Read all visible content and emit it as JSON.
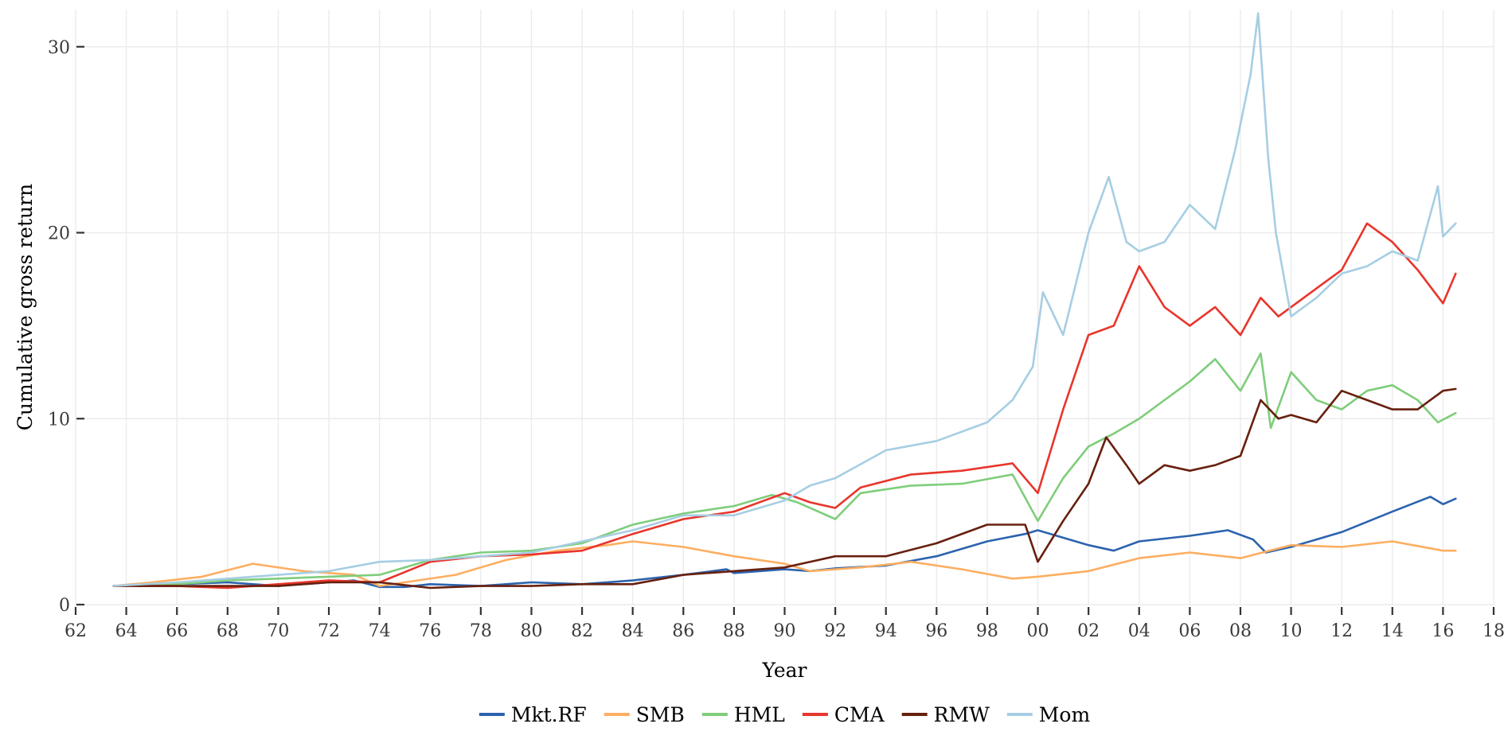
{
  "chart_data": {
    "type": "line",
    "xlabel": "Year",
    "ylabel": "Cumulative gross return",
    "xlim": [
      1962,
      2018
    ],
    "ylim": [
      0,
      32
    ],
    "x_ticks": [
      {
        "value": 1962,
        "label": "62"
      },
      {
        "value": 1964,
        "label": "64"
      },
      {
        "value": 1966,
        "label": "66"
      },
      {
        "value": 1968,
        "label": "68"
      },
      {
        "value": 1970,
        "label": "70"
      },
      {
        "value": 1972,
        "label": "72"
      },
      {
        "value": 1974,
        "label": "74"
      },
      {
        "value": 1976,
        "label": "76"
      },
      {
        "value": 1978,
        "label": "78"
      },
      {
        "value": 1980,
        "label": "80"
      },
      {
        "value": 1982,
        "label": "82"
      },
      {
        "value": 1984,
        "label": "84"
      },
      {
        "value": 1986,
        "label": "86"
      },
      {
        "value": 1988,
        "label": "88"
      },
      {
        "value": 1990,
        "label": "90"
      },
      {
        "value": 1992,
        "label": "92"
      },
      {
        "value": 1994,
        "label": "94"
      },
      {
        "value": 1996,
        "label": "96"
      },
      {
        "value": 1998,
        "label": "98"
      },
      {
        "value": 2000,
        "label": "00"
      },
      {
        "value": 2002,
        "label": "02"
      },
      {
        "value": 2004,
        "label": "04"
      },
      {
        "value": 2006,
        "label": "06"
      },
      {
        "value": 2008,
        "label": "08"
      },
      {
        "value": 2010,
        "label": "10"
      },
      {
        "value": 2012,
        "label": "12"
      },
      {
        "value": 2014,
        "label": "14"
      },
      {
        "value": 2016,
        "label": "16"
      },
      {
        "value": 2018,
        "label": "18"
      }
    ],
    "y_ticks": [
      {
        "value": 0,
        "label": "0"
      },
      {
        "value": 10,
        "label": "10"
      },
      {
        "value": 20,
        "label": "20"
      },
      {
        "value": 30,
        "label": "30"
      }
    ],
    "grid": true,
    "legend_position": "bottom",
    "series": [
      {
        "name": "Mkt.RF",
        "color": "#2c63ae",
        "x": [
          1963.5,
          1966,
          1968,
          1970,
          1972,
          1973,
          1974,
          1975,
          1976,
          1978,
          1980,
          1982,
          1984,
          1986,
          1987.7,
          1988,
          1990,
          1991,
          1992,
          1994,
          1996,
          1998,
          1999.5,
          2000,
          2001,
          2002,
          2003,
          2004,
          2006,
          2007.5,
          2008.5,
          2009,
          2010,
          2012,
          2014,
          2015.5,
          2016,
          2016.5
        ],
        "y": [
          1.0,
          1.1,
          1.2,
          1.0,
          1.2,
          1.3,
          0.95,
          0.95,
          1.1,
          1.0,
          1.2,
          1.1,
          1.3,
          1.6,
          1.9,
          1.7,
          1.9,
          1.8,
          1.95,
          2.1,
          2.6,
          3.4,
          3.8,
          4.0,
          3.6,
          3.2,
          2.9,
          3.4,
          3.7,
          4.0,
          3.5,
          2.8,
          3.1,
          3.9,
          5.0,
          5.8,
          5.4,
          5.7
        ]
      },
      {
        "name": "SMB",
        "color": "#fdae61",
        "x": [
          1963.5,
          1965,
          1967,
          1969,
          1971,
          1973,
          1974,
          1975,
          1977,
          1979,
          1981,
          1983,
          1984,
          1986,
          1988,
          1990,
          1991,
          1993,
          1995,
          1997,
          1999,
          2000,
          2002,
          2004,
          2006,
          2008,
          2010,
          2012,
          2014,
          2016,
          2016.5
        ],
        "y": [
          1.0,
          1.2,
          1.5,
          2.2,
          1.8,
          1.6,
          1.0,
          1.2,
          1.6,
          2.4,
          2.9,
          3.2,
          3.4,
          3.1,
          2.6,
          2.2,
          1.8,
          2.0,
          2.3,
          1.9,
          1.4,
          1.5,
          1.8,
          2.5,
          2.8,
          2.5,
          3.2,
          3.1,
          3.4,
          2.9,
          2.9
        ]
      },
      {
        "name": "HML",
        "color": "#7fcd7b",
        "x": [
          1963.5,
          1966,
          1968,
          1970,
          1972,
          1974,
          1976,
          1978,
          1980,
          1982,
          1984,
          1986,
          1988,
          1989.5,
          1990.5,
          1992,
          1993,
          1995,
          1997,
          1999,
          2000,
          2001,
          2002,
          2003,
          2004,
          2006,
          2007,
          2008,
          2008.8,
          2009.2,
          2010,
          2011,
          2012,
          2013,
          2014,
          2015,
          2015.8,
          2016.5
        ],
        "y": [
          1.0,
          1.1,
          1.3,
          1.4,
          1.5,
          1.6,
          2.4,
          2.8,
          2.9,
          3.3,
          4.3,
          4.9,
          5.3,
          5.9,
          5.5,
          4.6,
          6.0,
          6.4,
          6.5,
          7.0,
          4.5,
          6.8,
          8.5,
          9.2,
          10.0,
          12.0,
          13.2,
          11.5,
          13.5,
          9.5,
          12.5,
          11.0,
          10.5,
          11.5,
          11.8,
          11.0,
          9.8,
          10.3
        ]
      },
      {
        "name": "CMA",
        "color": "#e8352b",
        "x": [
          1963.5,
          1966,
          1968,
          1970,
          1972,
          1974,
          1976,
          1978,
          1980,
          1982,
          1984,
          1986,
          1988,
          1990,
          1991,
          1992,
          1993,
          1995,
          1997,
          1999,
          2000,
          2001,
          2002,
          2003,
          2004,
          2005,
          2006,
          2007,
          2008,
          2008.8,
          2009.5,
          2011,
          2012,
          2013,
          2014,
          2015,
          2016,
          2016.5
        ],
        "y": [
          1.0,
          1.0,
          0.9,
          1.1,
          1.3,
          1.2,
          2.3,
          2.6,
          2.7,
          2.9,
          3.8,
          4.6,
          5.0,
          6.0,
          5.5,
          5.2,
          6.3,
          7.0,
          7.2,
          7.6,
          6.0,
          10.5,
          14.5,
          15.0,
          18.2,
          16.0,
          15.0,
          16.0,
          14.5,
          16.5,
          15.5,
          17.0,
          18.0,
          20.5,
          19.5,
          18.0,
          16.2,
          17.8
        ]
      },
      {
        "name": "RMW",
        "color": "#67200e",
        "x": [
          1963.5,
          1966,
          1968,
          1970,
          1972,
          1974,
          1976,
          1978,
          1980,
          1982,
          1984,
          1986,
          1988,
          1990,
          1992,
          1994,
          1996,
          1998,
          1999.5,
          2000,
          2001,
          2002,
          2002.7,
          2003.5,
          2004,
          2005,
          2006,
          2007,
          2008,
          2008.8,
          2009.5,
          2010,
          2011,
          2012,
          2013,
          2014,
          2015,
          2016,
          2016.5
        ],
        "y": [
          1.0,
          1.0,
          1.0,
          1.0,
          1.2,
          1.2,
          0.9,
          1.0,
          1.0,
          1.1,
          1.1,
          1.6,
          1.8,
          2.0,
          2.6,
          2.6,
          3.3,
          4.3,
          4.3,
          2.3,
          4.5,
          6.5,
          9.0,
          7.5,
          6.5,
          7.5,
          7.2,
          7.5,
          8.0,
          11.0,
          10.0,
          10.2,
          9.8,
          11.5,
          11.0,
          10.5,
          10.5,
          11.5,
          11.6
        ]
      },
      {
        "name": "Mom",
        "color": "#a6cee3",
        "x": [
          1963.5,
          1966,
          1968,
          1970,
          1972,
          1974,
          1976,
          1978,
          1980,
          1982,
          1984,
          1986,
          1988,
          1990,
          1991,
          1992,
          1994,
          1996,
          1998,
          1999,
          1999.8,
          2000.2,
          2001,
          2002,
          2002.8,
          2003.5,
          2004,
          2005,
          2006,
          2007,
          2007.8,
          2008.4,
          2008.7,
          2009.1,
          2009.4,
          2010,
          2011,
          2012,
          2013,
          2014,
          2015,
          2015.8,
          2016,
          2016.5
        ],
        "y": [
          1.0,
          1.2,
          1.4,
          1.6,
          1.8,
          2.3,
          2.4,
          2.6,
          2.8,
          3.4,
          4.0,
          4.8,
          4.8,
          5.6,
          6.4,
          6.8,
          8.3,
          8.8,
          9.8,
          11.0,
          12.8,
          16.8,
          14.5,
          20.0,
          23.0,
          19.5,
          19.0,
          19.5,
          21.5,
          20.2,
          24.5,
          28.5,
          31.8,
          24.0,
          20.0,
          15.5,
          16.5,
          17.8,
          18.2,
          19.0,
          18.5,
          22.5,
          19.8,
          20.5
        ]
      }
    ]
  }
}
